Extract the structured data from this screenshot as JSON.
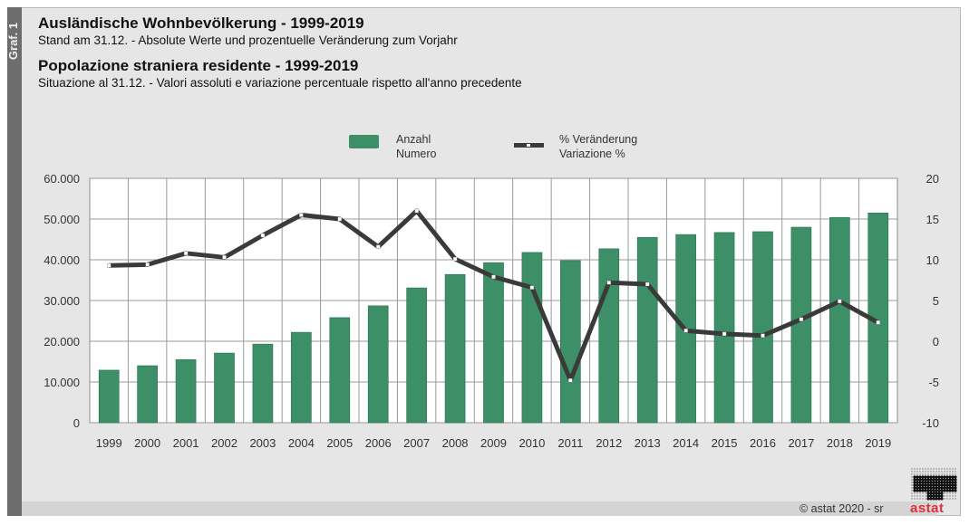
{
  "side_label": "Graf. 1",
  "header": {
    "title_de": "Ausländische Wohnbevölkerung - 1999-2019",
    "subtitle_de": "Stand am 31.12. - Absolute Werte und prozentuelle Veränderung zum Vorjahr",
    "title_it": "Popolazione straniera residente - 1999-2019",
    "subtitle_it": "Situazione al 31.12. - Valori assoluti e variazione percentuale rispetto all'anno precedente"
  },
  "footer": {
    "copyright": "© astat 2020 - sr",
    "logo_text": "astat"
  },
  "colors": {
    "bar": "#3d8f68",
    "line": "#3a3a3a",
    "marker": "#ffffff",
    "grid": "#9a9a9a",
    "logo": "#e0303a"
  },
  "chart_data": {
    "type": "bar",
    "title": "Ausländische Wohnbevölkerung - 1999-2019",
    "categories": [
      "1999",
      "2000",
      "2001",
      "2002",
      "2003",
      "2004",
      "2005",
      "2006",
      "2007",
      "2008",
      "2009",
      "2010",
      "2011",
      "2012",
      "2013",
      "2014",
      "2015",
      "2016",
      "2017",
      "2018",
      "2019"
    ],
    "series": [
      {
        "name": "Anzahl / Numero",
        "legend_line1": "Anzahl",
        "legend_line2": "Numero",
        "type": "bar",
        "axis": "left",
        "values": [
          12900,
          14000,
          15500,
          17100,
          19300,
          22200,
          25800,
          28700,
          33100,
          36400,
          39300,
          41800,
          39800,
          42700,
          45500,
          46200,
          46700,
          46900,
          48000,
          50400,
          51500
        ]
      },
      {
        "name": "% Veränderung / Variazione %",
        "legend_line1": "% Veränderung",
        "legend_line2": "Variazione %",
        "type": "line",
        "axis": "right",
        "values": [
          9.3,
          9.4,
          10.8,
          10.3,
          13.0,
          15.5,
          15.0,
          11.6,
          16.0,
          10.1,
          7.9,
          6.6,
          -4.8,
          7.2,
          7.0,
          1.3,
          0.9,
          0.7,
          2.7,
          4.9,
          2.3
        ]
      }
    ],
    "y_left": {
      "lim": [
        0,
        60000
      ],
      "ticks": [
        0,
        10000,
        20000,
        30000,
        40000,
        50000,
        60000
      ],
      "tick_labels": [
        "0",
        "10.000",
        "20.000",
        "30.000",
        "40.000",
        "50.000",
        "60.000"
      ]
    },
    "y_right": {
      "lim": [
        -10,
        20
      ],
      "ticks": [
        -10,
        -5,
        0,
        5,
        10,
        15,
        20
      ],
      "tick_labels": [
        "-10",
        "-5",
        "0",
        "5",
        "10",
        "15",
        "20"
      ]
    },
    "xlabel": "",
    "ylabel": "",
    "grid": true,
    "legend_position": "top-center"
  }
}
